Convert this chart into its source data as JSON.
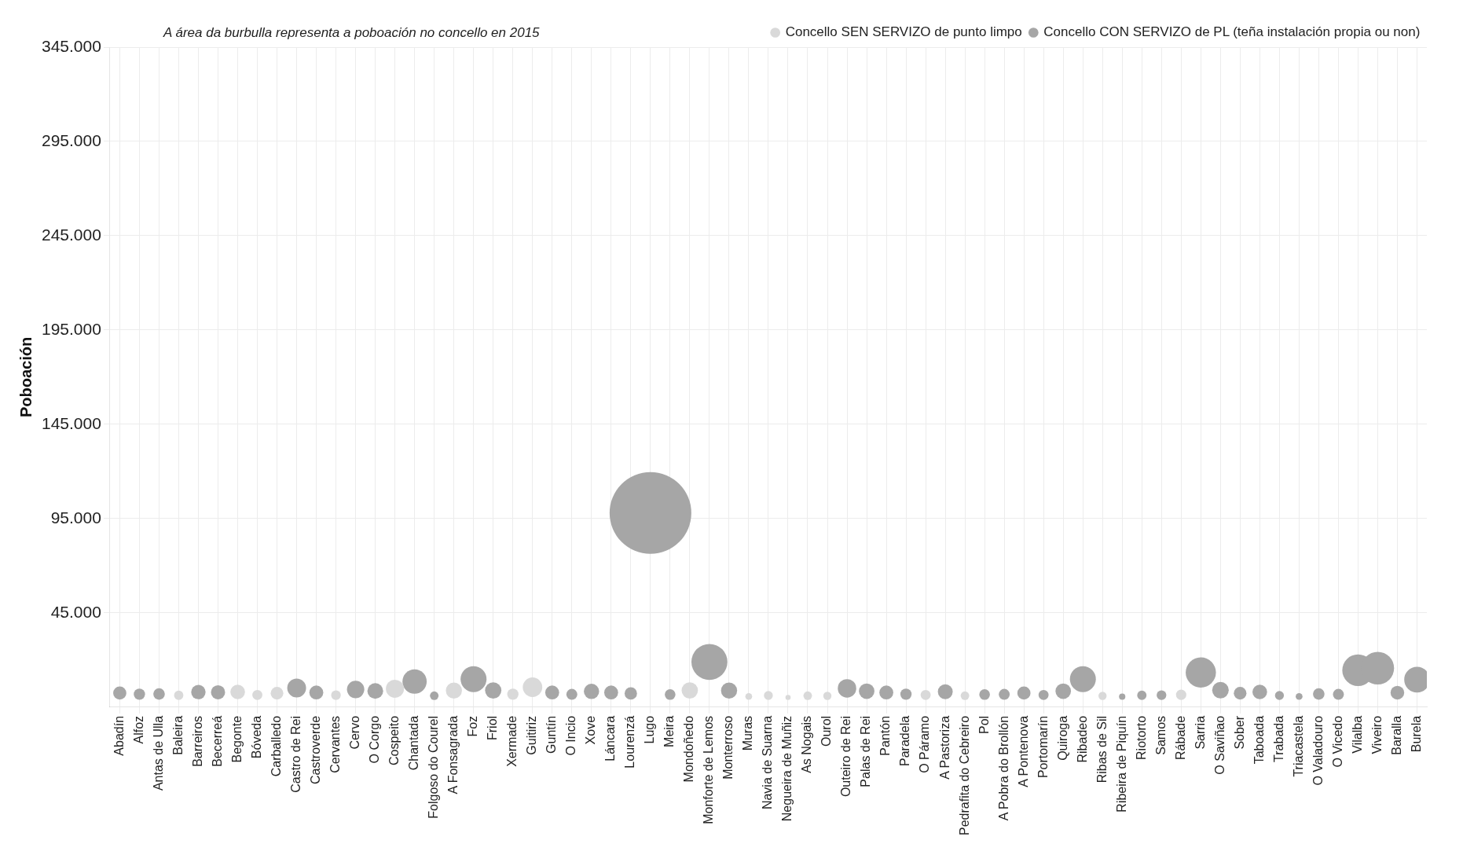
{
  "chart_data": {
    "type": "bubble",
    "annotations": [
      "A área da burbulla representa a poboación no concello en 2015"
    ],
    "ylabel": "Poboación",
    "categories": [
      "Abadín",
      "Alfoz",
      "Antas de Ulla",
      "Baleira",
      "Barreiros",
      "Becerreá",
      "Begonte",
      "Bóveda",
      "Carballedo",
      "Castro de Rei",
      "Castroverde",
      "Cervantes",
      "Cervo",
      "O Corgo",
      "Cospeito",
      "Chantada",
      "Folgoso do Courel",
      "A Fonsagrada",
      "Foz",
      "Friol",
      "Xermade",
      "Guitiriz",
      "Guntín",
      "O Incio",
      "Xove",
      "Láncara",
      "Lourenzá",
      "Lugo",
      "Meira",
      "Mondoñedo",
      "Monforte de Lemos",
      "Monterroso",
      "Muras",
      "Navia de Suarna",
      "Negueira de Muñiz",
      "As Nogais",
      "Ourol",
      "Outeiro de Rei",
      "Palas de Rei",
      "Pantón",
      "Paradela",
      "O Páramo",
      "A Pastoriza",
      "Pedrafita do Cebreiro",
      "Pol",
      "A Pobra do Brollón",
      "A Pontenova",
      "Portomarín",
      "Quiroga",
      "Ribadeo",
      "Ribas de Sil",
      "Ribeira de Piquín",
      "Riotorto",
      "Samos",
      "Rábade",
      "Sarria",
      "O Saviñao",
      "Sober",
      "Taboada",
      "Trabada",
      "Triacastela",
      "O Valadouro",
      "O Vicedo",
      "Vilalba",
      "Viveiro",
      "Baralla",
      "Burela"
    ],
    "series": [
      {
        "name": "Concello SEN SERVIZO de punto limpo",
        "color": "#d9d9d9",
        "values": [
          null,
          null,
          null,
          1300,
          null,
          null,
          3100,
          1500,
          2400,
          null,
          null,
          1400,
          null,
          null,
          4800,
          null,
          null,
          3800,
          null,
          null,
          1900,
          5600,
          null,
          null,
          null,
          null,
          null,
          null,
          null,
          3900,
          null,
          null,
          700,
          1200,
          200,
          1100,
          1000,
          null,
          null,
          null,
          null,
          1500,
          null,
          1100,
          null,
          null,
          null,
          null,
          null,
          null,
          1000,
          null,
          null,
          null,
          1600,
          null,
          null,
          null,
          null,
          null,
          null,
          null,
          null,
          null,
          null,
          null,
          null
        ],
        "sizes": [
          null,
          null,
          null,
          0.013,
          null,
          null,
          0.032,
          0.015,
          0.024,
          null,
          null,
          0.014,
          null,
          null,
          0.049,
          null,
          null,
          0.039,
          null,
          null,
          0.019,
          0.057,
          null,
          null,
          null,
          null,
          null,
          null,
          null,
          0.04,
          null,
          null,
          0.007,
          0.012,
          0.004,
          0.011,
          0.01,
          null,
          null,
          null,
          null,
          0.015,
          null,
          0.011,
          null,
          null,
          null,
          null,
          null,
          null,
          0.01,
          null,
          null,
          null,
          0.016,
          null,
          null,
          null,
          null,
          null,
          null,
          null,
          null,
          null,
          null,
          null,
          null
        ]
      },
      {
        "name": "Concello CON SERVIZO de PL (teña instalación propia ou non)",
        "color": "#a6a6a6",
        "values": [
          2500,
          1900,
          2000,
          null,
          3000,
          2900,
          null,
          null,
          null,
          5200,
          2800,
          null,
          4400,
          3600,
          null,
          8600,
          1100,
          null,
          9900,
          3900,
          null,
          null,
          2800,
          1800,
          3400,
          2800,
          2300,
          98000,
          1700,
          null,
          19000,
          3800,
          null,
          null,
          null,
          null,
          null,
          5000,
          3500,
          2800,
          1900,
          null,
          3200,
          null,
          1700,
          1800,
          2500,
          1500,
          3500,
          9900,
          null,
          600,
          1300,
          1400,
          null,
          13400,
          4000,
          2400,
          3100,
          1200,
          700,
          2000,
          1800,
          14600,
          15700,
          2700,
          9600
        ],
        "sizes": [
          0.026,
          0.019,
          0.02,
          null,
          0.031,
          0.03,
          null,
          null,
          null,
          0.053,
          0.029,
          null,
          0.045,
          0.037,
          null,
          0.088,
          0.011,
          null,
          0.101,
          0.04,
          null,
          null,
          0.029,
          0.018,
          0.035,
          0.029,
          0.023,
          1,
          0.017,
          null,
          0.194,
          0.039,
          null,
          null,
          null,
          null,
          null,
          0.051,
          0.036,
          0.029,
          0.019,
          null,
          0.033,
          null,
          0.017,
          0.018,
          0.026,
          0.015,
          0.036,
          0.101,
          null,
          0.006,
          0.013,
          0.014,
          null,
          0.137,
          0.041,
          0.024,
          0.032,
          0.012,
          0.007,
          0.02,
          0.018,
          0.149,
          0.16,
          0.028,
          0.098
        ]
      }
    ],
    "ylim": [
      -5000,
      345000
    ],
    "yticks": [
      {
        "value": 45000,
        "label": "45.000"
      },
      {
        "value": 95000,
        "label": "95.000"
      },
      {
        "value": 145000,
        "label": "145.000"
      },
      {
        "value": 195000,
        "label": "195.000"
      },
      {
        "value": 245000,
        "label": "245.000"
      },
      {
        "value": 295000,
        "label": "295.000"
      },
      {
        "value": 345000,
        "label": "345.000"
      }
    ],
    "grid": true,
    "legend": "top right",
    "marker": "circle"
  }
}
